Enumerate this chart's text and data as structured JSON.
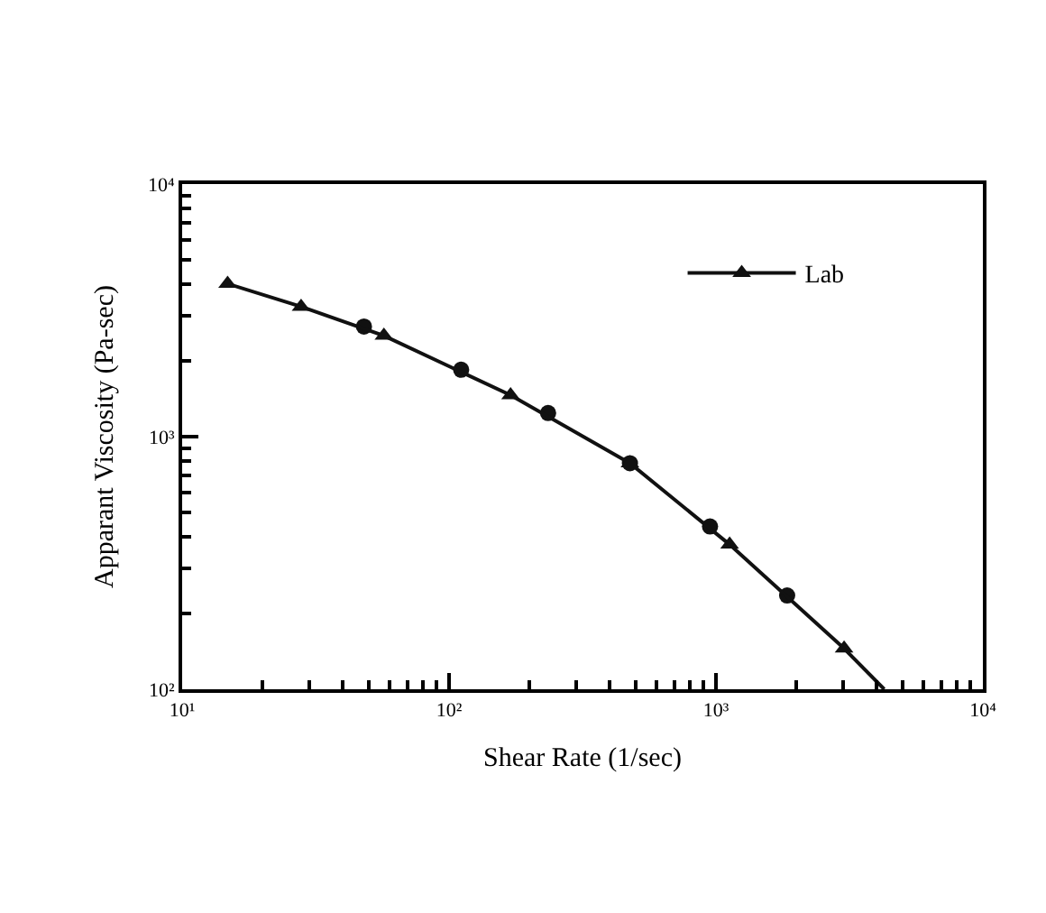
{
  "chart_data": {
    "type": "scatter",
    "xlabel": "Shear Rate (1/sec)",
    "ylabel": "Apparant Viscosity (Pa-sec)",
    "log": "xy",
    "xlim": [
      10,
      10000
    ],
    "ylim": [
      100,
      10000
    ],
    "xticks": [
      {
        "value": 10,
        "label": "10¹"
      },
      {
        "value": 100,
        "label": "10²"
      },
      {
        "value": 1000,
        "label": "10³"
      },
      {
        "value": 10000,
        "label": "10⁴"
      }
    ],
    "yticks": [
      {
        "value": 100,
        "label": "10²"
      },
      {
        "value": 1000,
        "label": "10³"
      },
      {
        "value": 10000,
        "label": "10⁴"
      }
    ],
    "legend": "top right",
    "series": [
      {
        "marker": "circle",
        "color": "#111111",
        "x": [
          48,
          111,
          235,
          476,
          950,
          1848
        ],
        "values": [
          2730,
          1840,
          1240,
          785,
          441,
          235
        ]
      },
      {
        "type": "line",
        "name": "Lab",
        "marker": "triangle",
        "line_style": "solid",
        "color": "#111111",
        "x": [
          14.8,
          27.9,
          57,
          170,
          476,
          1125,
          3020
        ],
        "values": [
          4030,
          3270,
          2510,
          1460,
          785,
          374,
          145
        ]
      },
      {
        "type": "line",
        "marker": "none",
        "line_style": "solid",
        "color": "#111111",
        "x": [
          3020,
          4270
        ],
        "values": [
          145,
          100
        ]
      }
    ]
  }
}
